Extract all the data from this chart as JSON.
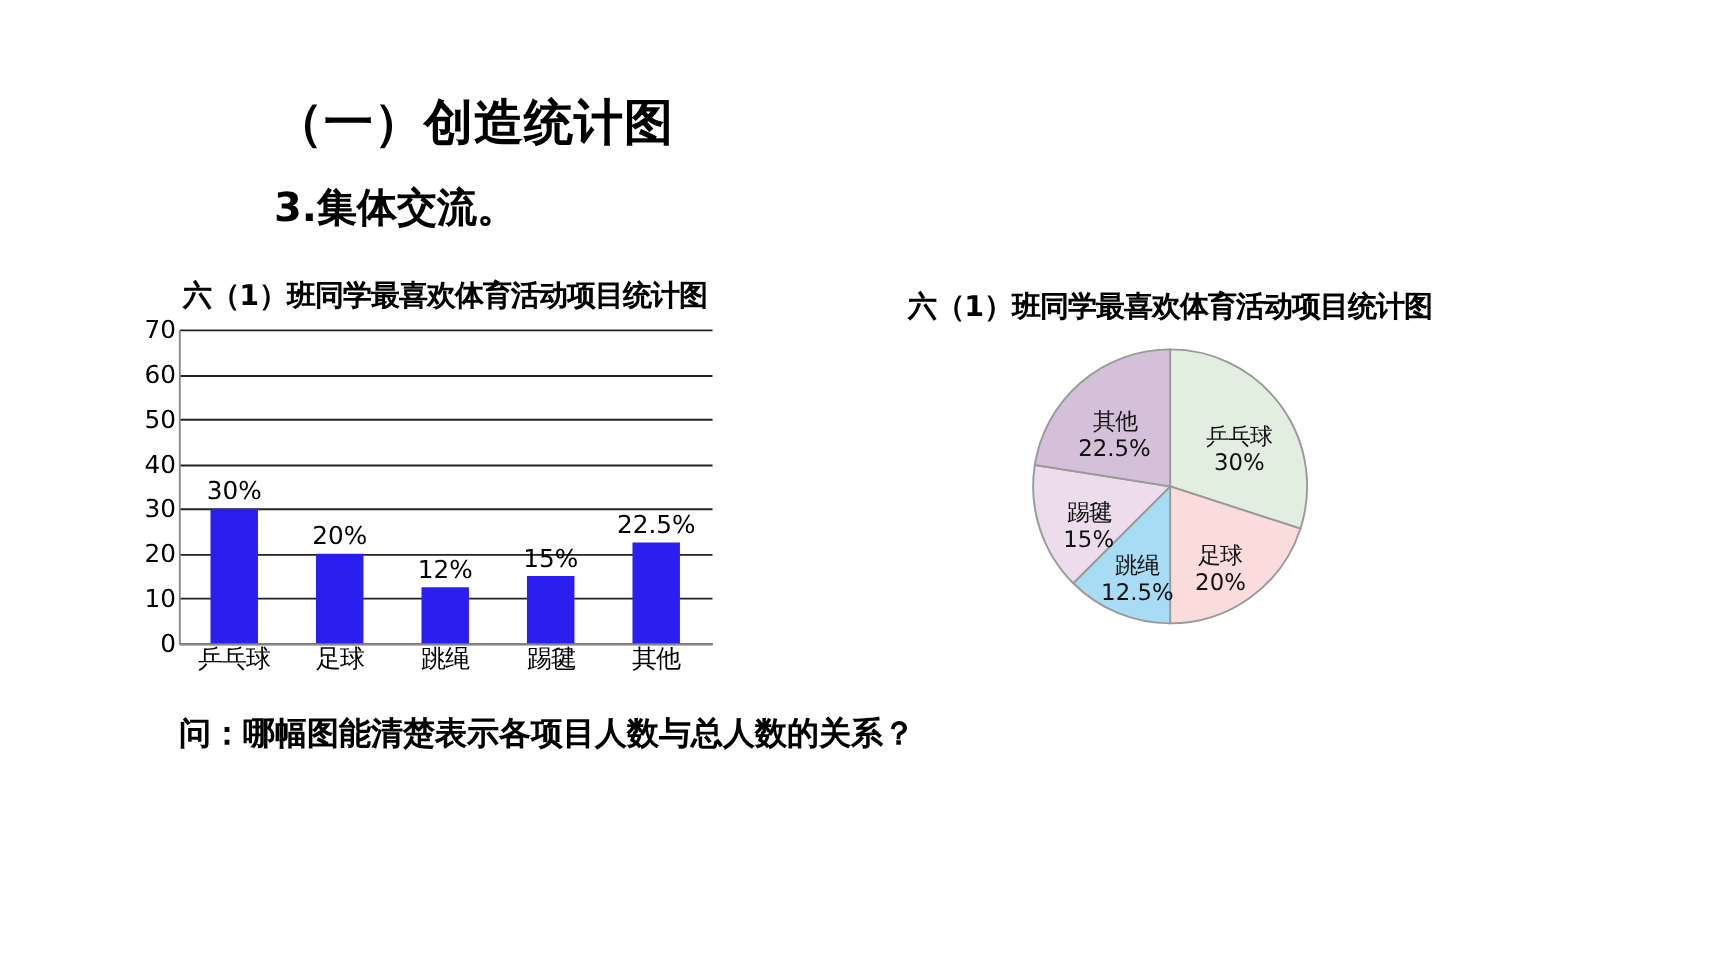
{
  "chart_data": [
    {
      "type": "bar",
      "title": "六（1）班同学最喜欢体育活动项目统计图",
      "annotations": [
        "（一）创造统计图",
        "3.集体交流。",
        "问：哪幅图能清楚表示各项目人数与总人数的关系？"
      ],
      "categories": [
        "乒乓球",
        "足球",
        "跳绳",
        "踢毽",
        "其他"
      ],
      "values": [
        30,
        20,
        12.5,
        15,
        22.5
      ],
      "value_labels": [
        "30%",
        "20%",
        "12%",
        "15%",
        "22.5%"
      ],
      "color": "#2b1ff0",
      "ylim": [
        0,
        70
      ],
      "yticks": [
        0,
        10,
        20,
        30,
        40,
        50,
        60,
        70
      ],
      "grid": "y"
    },
    {
      "type": "pie",
      "title": "六（1）班同学最喜欢体育活动项目统计图",
      "categories": [
        "乒乓球",
        "足球",
        "跳绳",
        "踢毽",
        "其他"
      ],
      "values": [
        30,
        20,
        12.5,
        15,
        22.5
      ],
      "value_labels": [
        "30%",
        "20%",
        "12.5%",
        "15%",
        "22.5%"
      ],
      "colors": [
        "#e2efe0",
        "#fadcdc",
        "#a8dcf5",
        "#ecdcec",
        "#d4c0d8"
      ]
    }
  ]
}
